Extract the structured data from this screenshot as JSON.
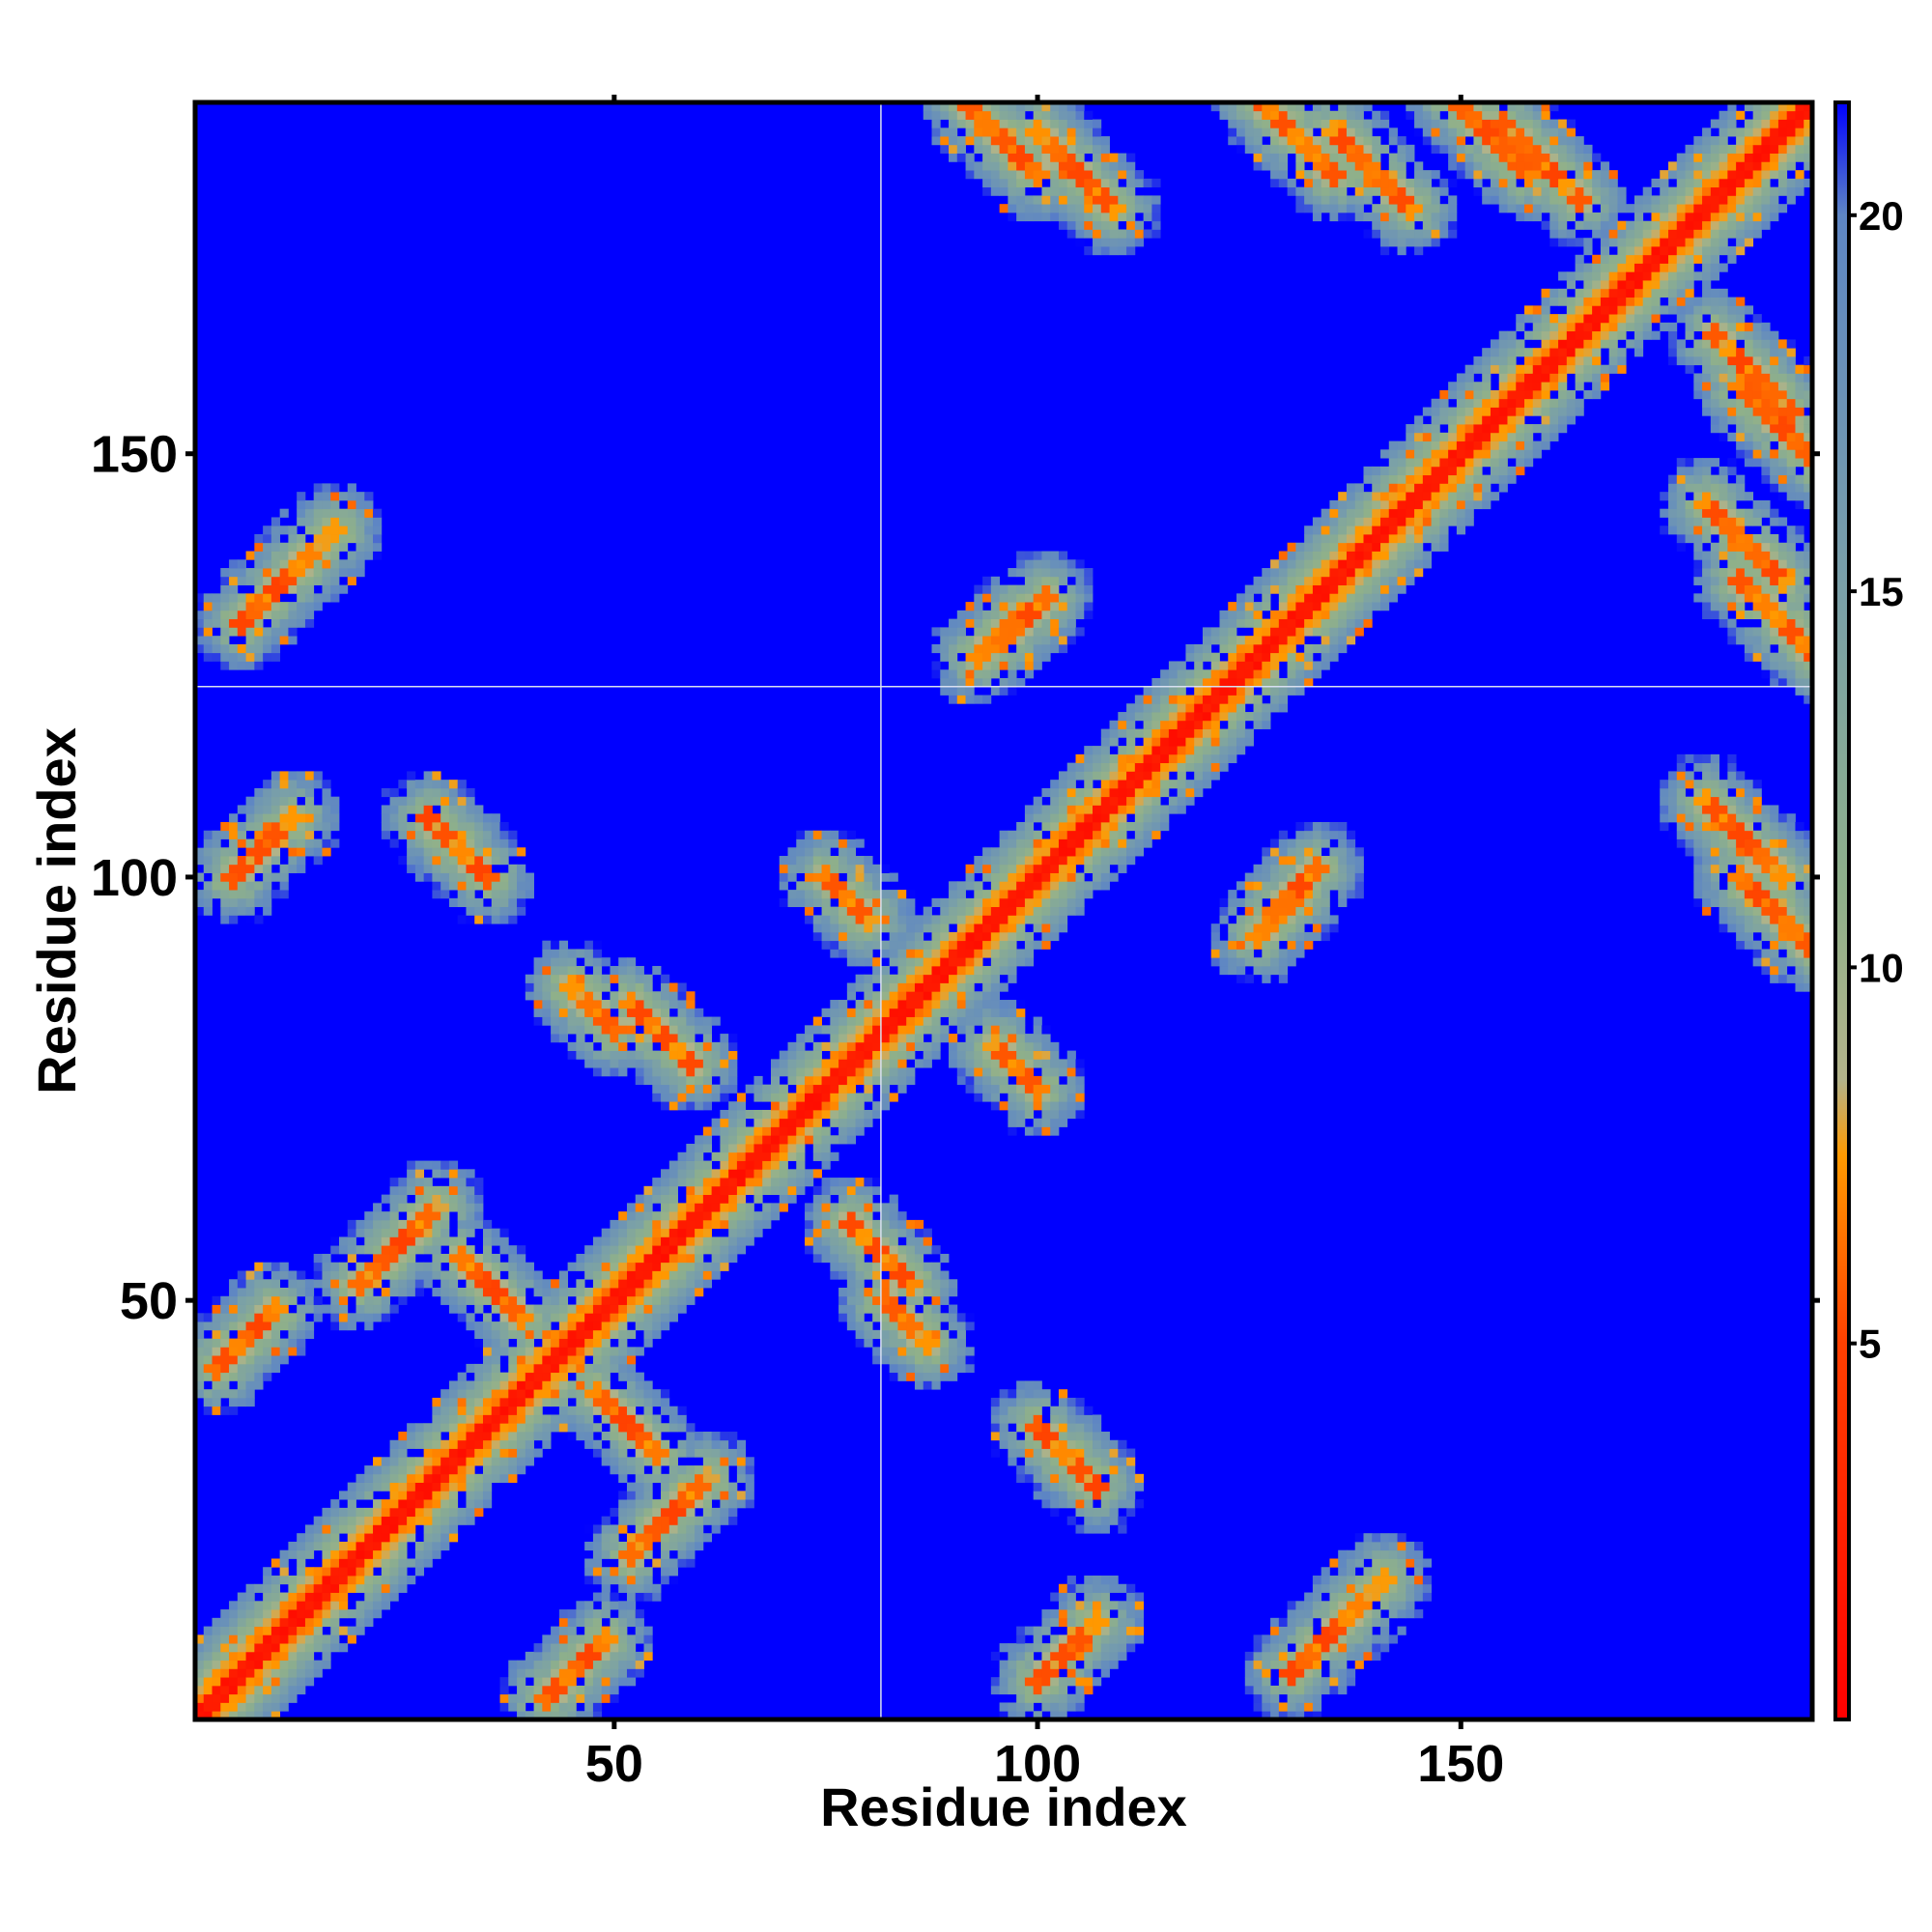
{
  "chart_data": {
    "type": "heatmap",
    "title": "",
    "xlabel": "Residue index",
    "ylabel": "Residue index",
    "n_residues": 191,
    "xlim": [
      1,
      191
    ],
    "ylim": [
      1,
      191
    ],
    "x_ticks": [
      {
        "value": 50,
        "label": "50"
      },
      {
        "value": 100,
        "label": "100"
      },
      {
        "value": 150,
        "label": "150"
      }
    ],
    "y_ticks": [
      {
        "value": 50,
        "label": "50"
      },
      {
        "value": 100,
        "label": "100"
      },
      {
        "value": 150,
        "label": "150"
      }
    ],
    "colorbar": {
      "range": [
        0,
        21.5
      ],
      "ticks": [
        {
          "value": 5,
          "label": "5"
        },
        {
          "value": 10,
          "label": "10"
        },
        {
          "value": 15,
          "label": "15"
        },
        {
          "value": 20,
          "label": "20"
        }
      ],
      "stops": [
        {
          "value": 0,
          "color": "#ff0000"
        },
        {
          "value": 5,
          "color": "#ff4000"
        },
        {
          "value": 7.5,
          "color": "#ff9a00"
        },
        {
          "value": 8.5,
          "color": "#b3b38a"
        },
        {
          "value": 11,
          "color": "#8fb08a"
        },
        {
          "value": 15,
          "color": "#7aa0a8"
        },
        {
          "value": 20,
          "color": "#5e86c4"
        },
        {
          "value": 21.5,
          "color": "#0000ff"
        }
      ]
    },
    "background_value": 21.5,
    "secondary_structure_bands": [
      {
        "from": 1,
        "to": 28,
        "offset": 4
      },
      {
        "from": 28,
        "to": 60,
        "offset": 4
      },
      {
        "from": 60,
        "to": 95,
        "offset": 3
      },
      {
        "from": 95,
        "to": 140,
        "offset": 4
      },
      {
        "from": 140,
        "to": 191,
        "offset": 4
      }
    ],
    "contact_strands": [
      {
        "i_start": 130,
        "j_start": 6,
        "length": 12,
        "direction": "parallel"
      },
      {
        "i_start": 100,
        "j_start": 5,
        "length": 8,
        "direction": "parallel"
      },
      {
        "i_start": 82,
        "j_start": 45,
        "length": 6,
        "direction": "antiparallel"
      },
      {
        "i_start": 52,
        "j_start": 20,
        "length": 10,
        "direction": "parallel"
      },
      {
        "i_start": 100,
        "j_start": 28,
        "length": 8,
        "direction": "antiparallel"
      },
      {
        "i_start": 32,
        "j_start": 48,
        "length": 8,
        "direction": "antiparallel"
      },
      {
        "i_start": 78,
        "j_start": 52,
        "length": 8,
        "direction": "antiparallel"
      },
      {
        "i_start": 95,
        "j_start": 75,
        "length": 6,
        "direction": "antiparallel"
      },
      {
        "i_start": 126,
        "j_start": 93,
        "length": 6,
        "direction": "parallel"
      },
      {
        "i_start": 96,
        "j_start": 128,
        "length": 6,
        "direction": "parallel"
      },
      {
        "i_start": 183,
        "j_start": 126,
        "length": 10,
        "direction": "antiparallel"
      },
      {
        "i_start": 183,
        "j_start": 149,
        "length": 10,
        "direction": "antiparallel"
      },
      {
        "i_start": 155,
        "j_start": 180,
        "length": 10,
        "direction": "antiparallel"
      },
      {
        "i_start": 135,
        "j_start": 179,
        "length": 10,
        "direction": "antiparallel"
      },
      {
        "i_start": 100,
        "j_start": 179,
        "length": 10,
        "direction": "antiparallel"
      },
      {
        "i_start": 183,
        "j_start": 92,
        "length": 9,
        "direction": "antiparallel"
      },
      {
        "i_start": 42,
        "j_start": 3,
        "length": 8,
        "direction": "parallel"
      }
    ],
    "gap_lines": [
      {
        "axis": "x",
        "value": 82
      },
      {
        "axis": "y",
        "value": 123
      }
    ]
  }
}
